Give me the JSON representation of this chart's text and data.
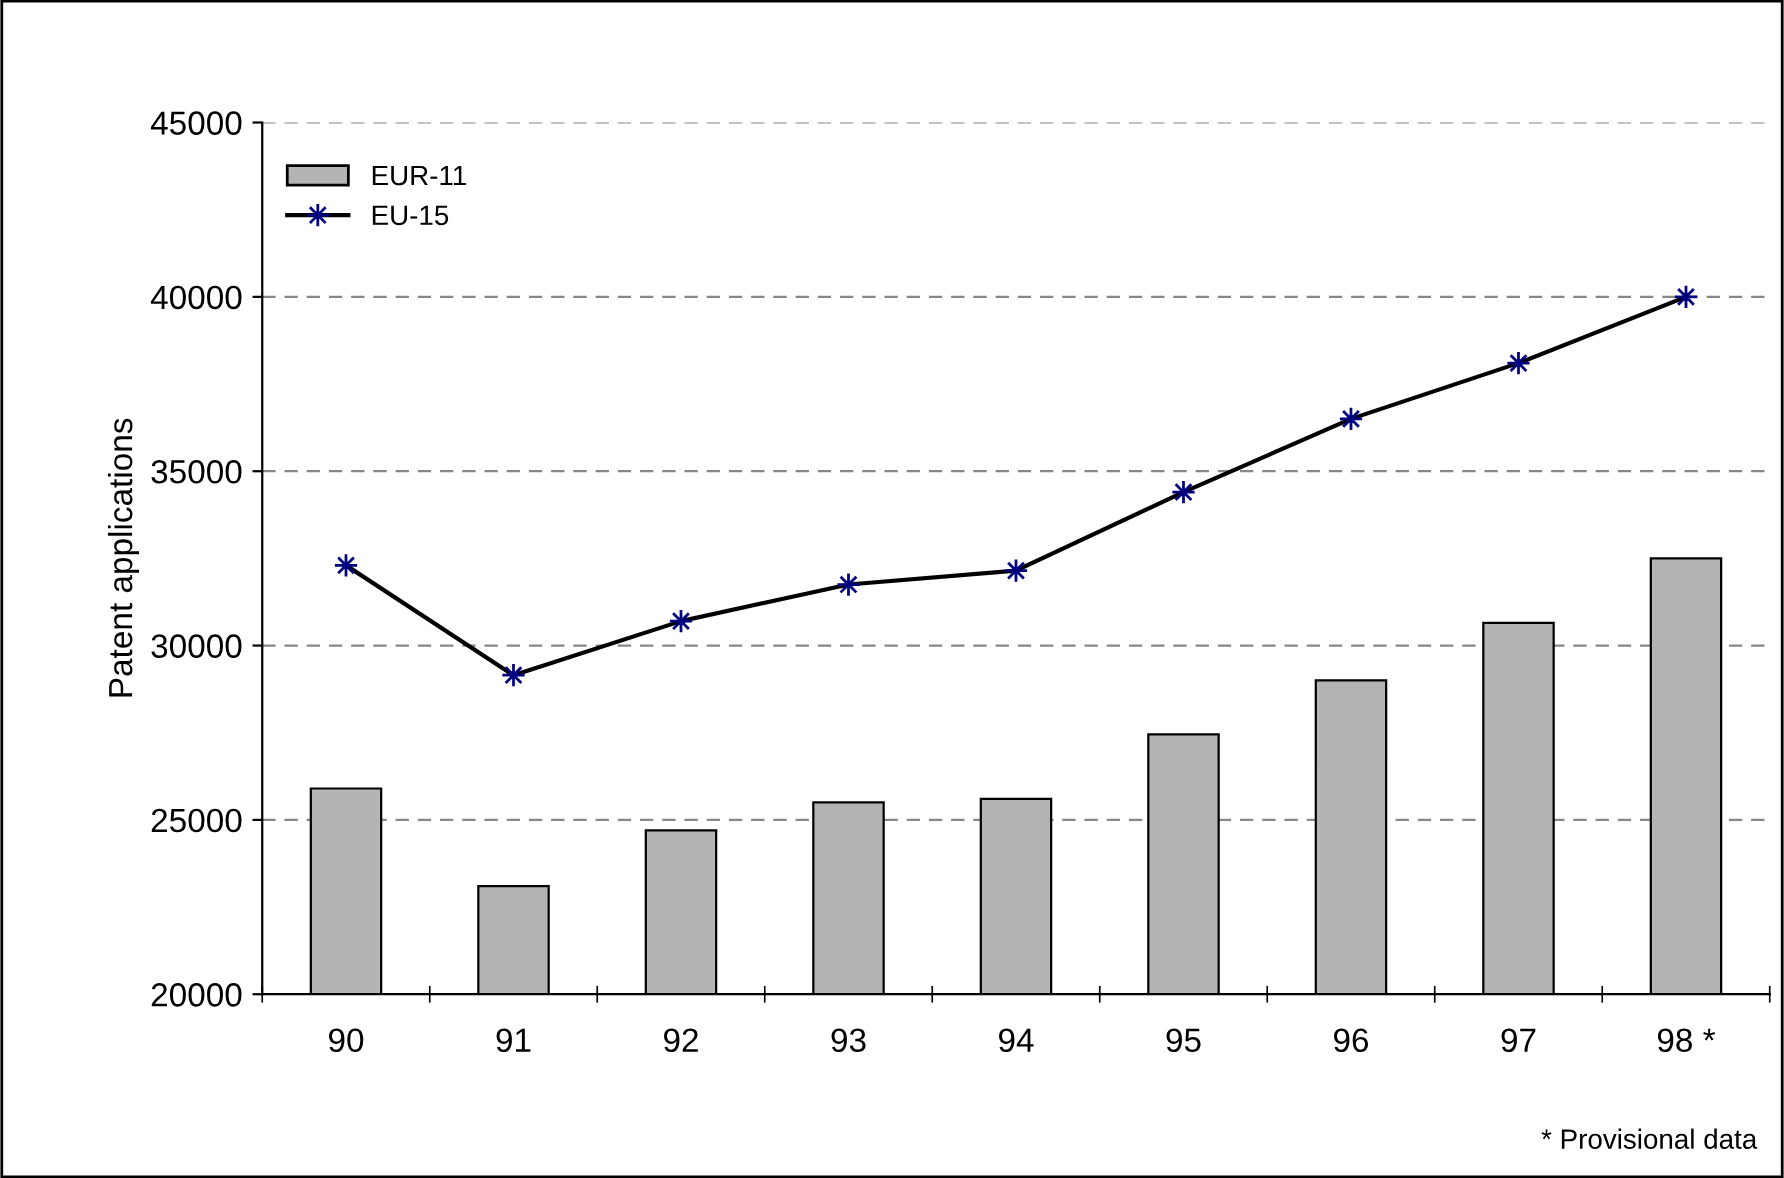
{
  "chart_data": {
    "type": "bar",
    "ylabel": "Patent applications",
    "categories": [
      "90",
      "91",
      "92",
      "93",
      "94",
      "95",
      "96",
      "97",
      "98 *"
    ],
    "series": [
      {
        "name": "EUR-11",
        "color": "#b4b4b4",
        "values": [
          25900,
          23100,
          24700,
          25500,
          25600,
          27450,
          29000,
          30650,
          32500
        ]
      },
      {
        "name": "EU-15",
        "type": "line",
        "color": "#000000",
        "marker": "star",
        "values": [
          32300,
          29150,
          30700,
          31750,
          32150,
          34400,
          36500,
          38100,
          40000
        ]
      }
    ],
    "ylim": [
      20000,
      45000
    ],
    "yticks": [
      20000,
      25000,
      30000,
      35000,
      40000,
      45000
    ],
    "grid": "y",
    "legend": "top left",
    "annotations": [
      "* Provisional data"
    ]
  }
}
